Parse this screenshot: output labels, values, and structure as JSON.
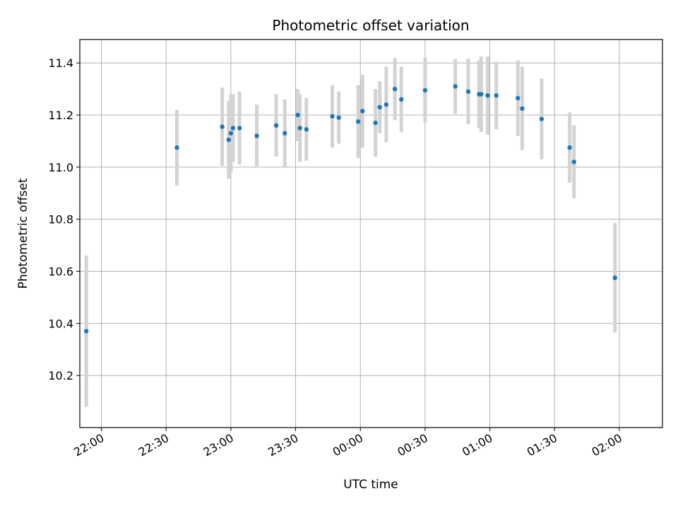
{
  "chart_data": {
    "type": "scatter",
    "title": "Photometric offset variation",
    "xlabel": "UTC time",
    "ylabel": "Photometric offset",
    "x_ticks": [
      "22:00",
      "22:30",
      "23:00",
      "23:30",
      "00:00",
      "00:30",
      "01:00",
      "01:30",
      "02:00"
    ],
    "y_ticks": [
      "10.2",
      "10.4",
      "10.6",
      "10.8",
      "11.0",
      "11.2",
      "11.4"
    ],
    "ylim": [
      10.0,
      11.49
    ],
    "grid": true,
    "colors": {
      "point": "#1f77b4",
      "errorbar": "#d3d3d3",
      "grid": "#b0b0b0"
    },
    "series": [
      {
        "x_utc": [
          "21:53",
          "22:35",
          "22:56",
          "22:59",
          "23:00",
          "23:01",
          "23:04",
          "23:12",
          "23:21",
          "23:25",
          "23:31",
          "23:32",
          "23:35",
          "23:47",
          "23:50",
          "23:59",
          "00:01",
          "00:07",
          "00:09",
          "00:12",
          "00:16",
          "00:19",
          "00:30",
          "00:44",
          "00:50",
          "00:55",
          "00:56",
          "00:59",
          "01:03",
          "01:13",
          "01:15",
          "01:24",
          "01:37",
          "01:39",
          "01:58"
        ],
        "y": [
          10.37,
          11.075,
          11.155,
          11.105,
          11.13,
          11.15,
          11.15,
          11.12,
          11.16,
          11.13,
          11.2,
          11.15,
          11.145,
          11.195,
          11.19,
          11.175,
          11.215,
          11.17,
          11.23,
          11.24,
          11.3,
          11.26,
          11.295,
          11.31,
          11.29,
          11.28,
          11.28,
          11.275,
          11.275,
          11.265,
          11.225,
          11.185,
          11.075,
          11.02,
          10.575
        ],
        "y_err": [
          0.29,
          0.145,
          0.15,
          0.15,
          0.15,
          0.13,
          0.14,
          0.12,
          0.12,
          0.13,
          0.1,
          0.13,
          0.12,
          0.12,
          0.1,
          0.14,
          0.14,
          0.13,
          0.1,
          0.145,
          0.12,
          0.125,
          0.125,
          0.105,
          0.125,
          0.13,
          0.145,
          0.15,
          0.13,
          0.145,
          0.16,
          0.155,
          0.135,
          0.14,
          0.21
        ]
      }
    ]
  }
}
